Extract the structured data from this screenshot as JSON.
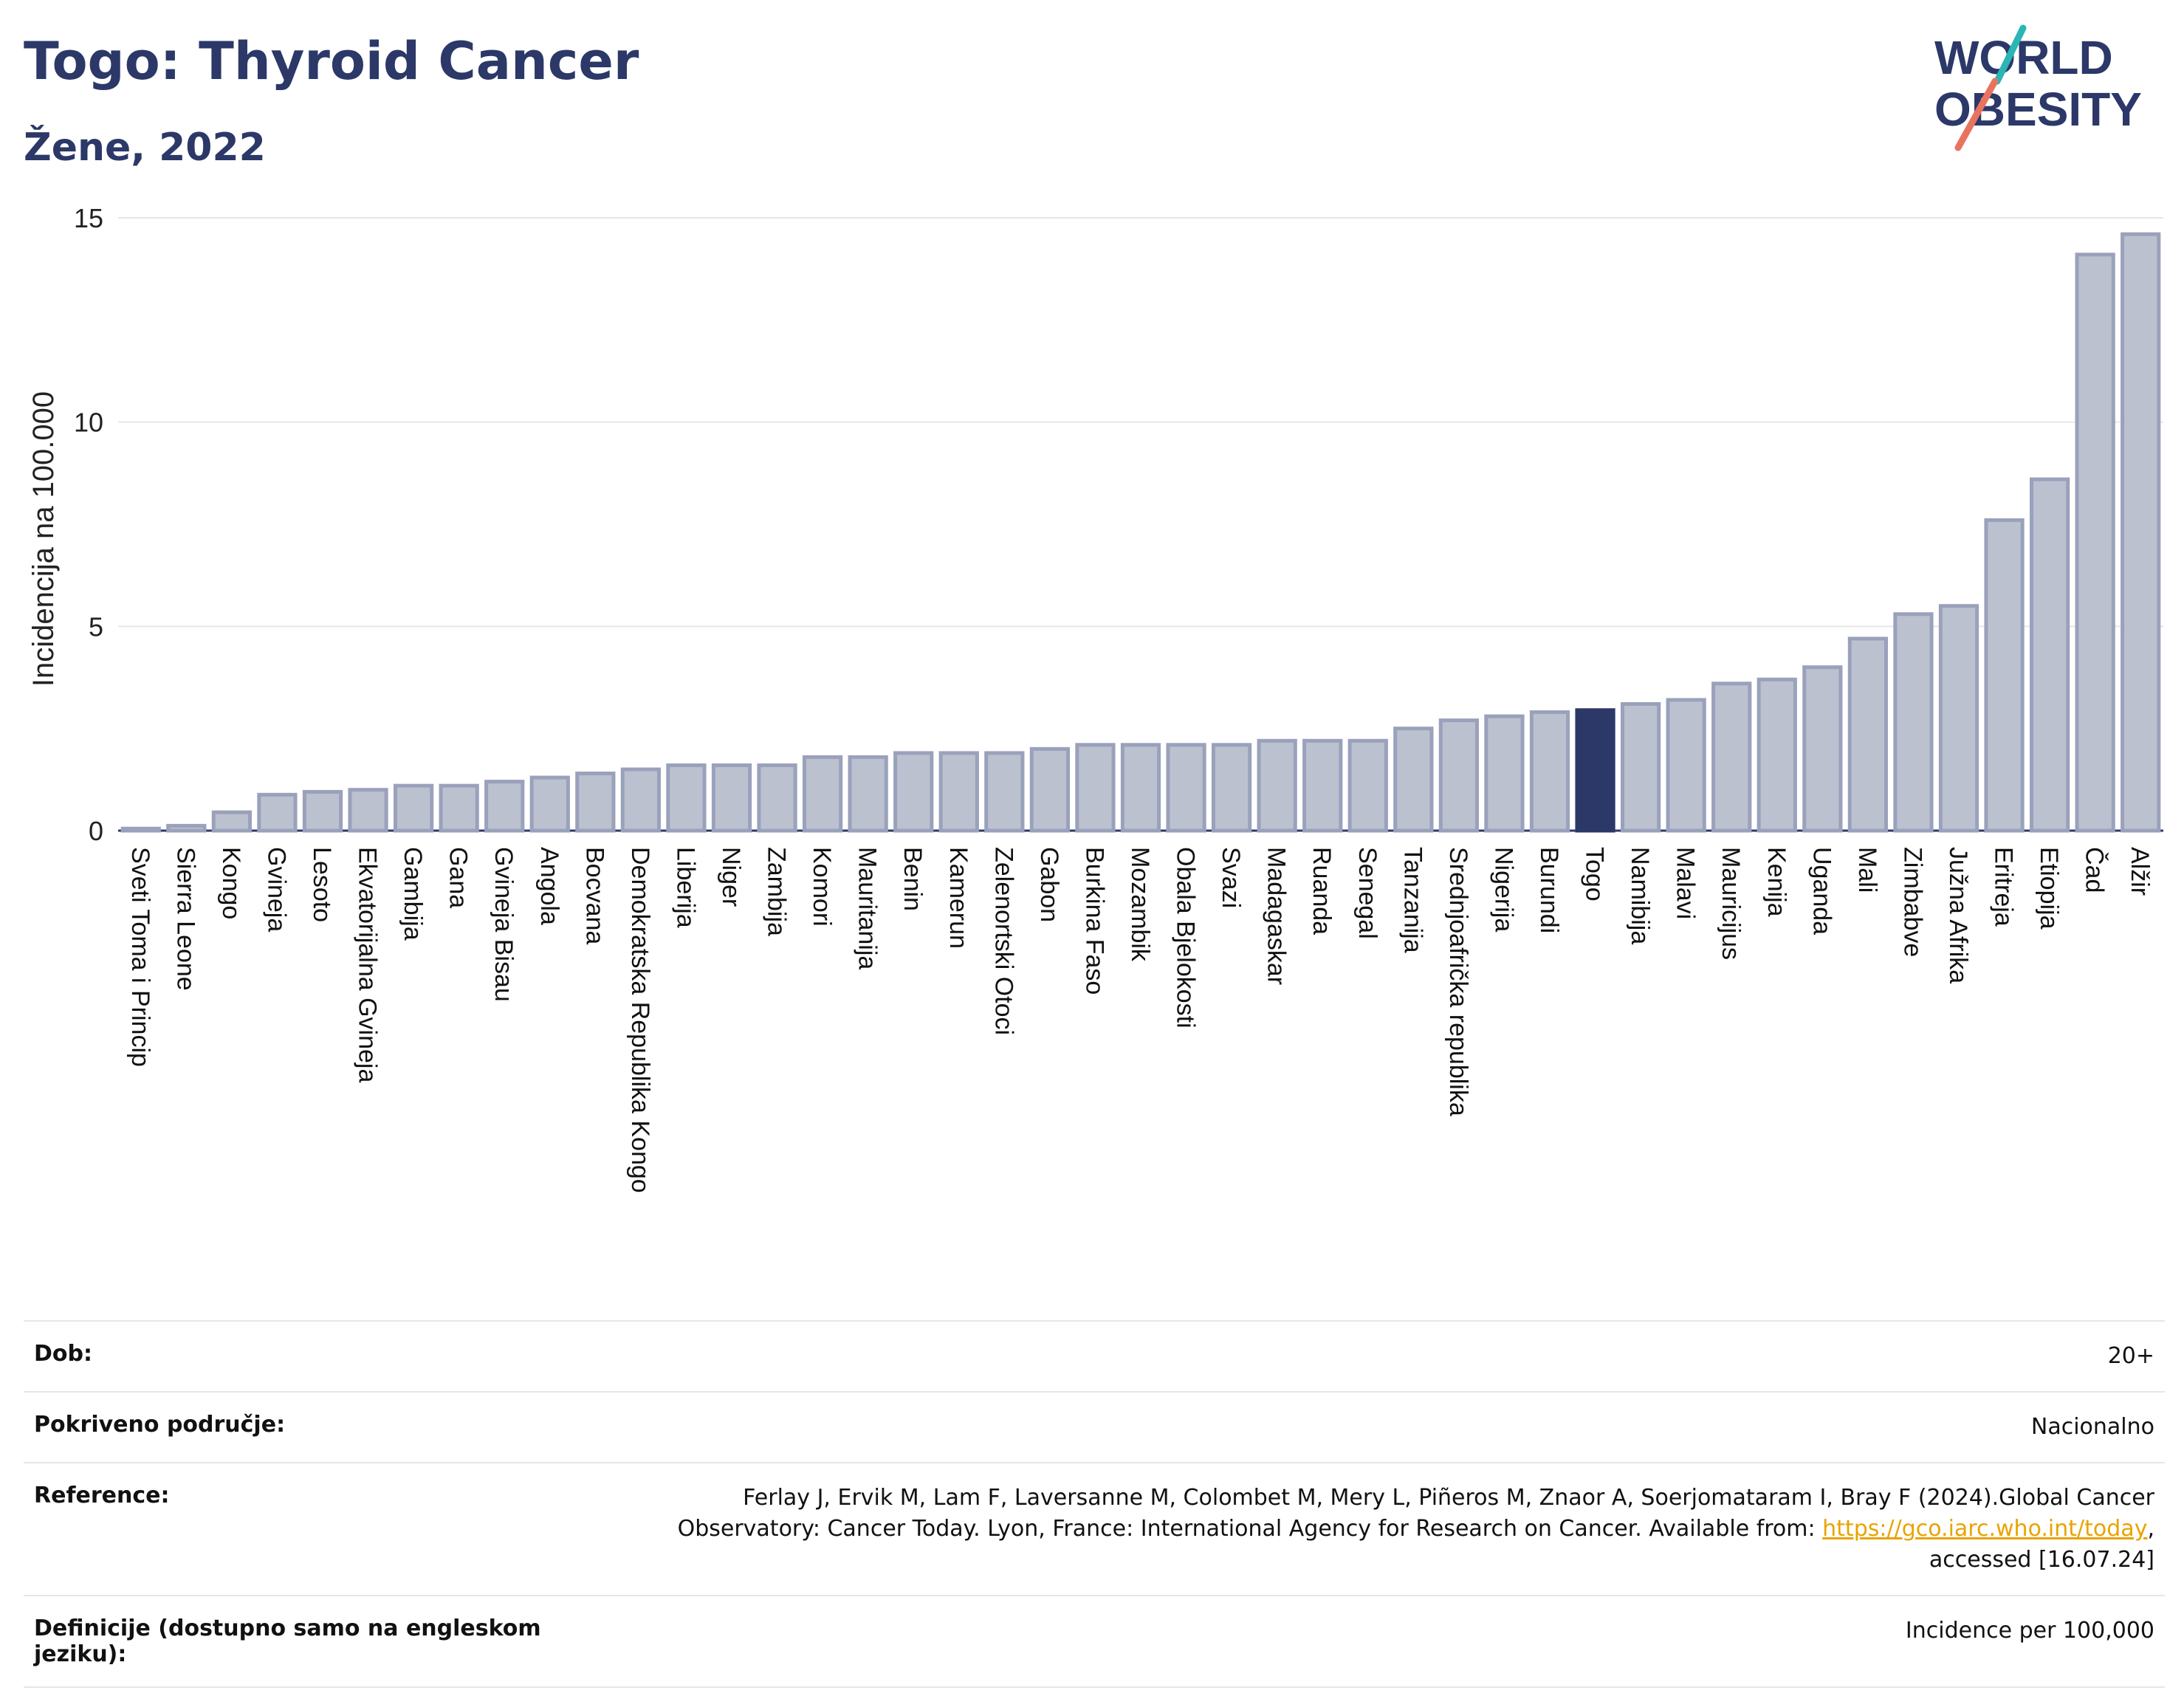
{
  "header": {
    "title": "Togo: Thyroid Cancer",
    "subtitle": "Žene, 2022"
  },
  "logo": {
    "line1": "WORLD",
    "line2": "OBESITY",
    "icon": "world-obesity-logo"
  },
  "colors": {
    "bar": "#bcc1d0",
    "bar_stroke": "#9aa1bb",
    "highlight": "#2b3868",
    "axis": "#2b3868",
    "grid": "#e6e6e6",
    "link": "#e8a400"
  },
  "chart_data": {
    "type": "bar",
    "ylabel": "Incidencija na 100.000",
    "ylim": [
      0,
      15
    ],
    "yticks": [
      0,
      5,
      10,
      15
    ],
    "highlight": "Togo",
    "categories": [
      "Sveti Toma i Princip",
      "Sierra Leone",
      "Kongo",
      "Gvineja",
      "Lesoto",
      "Ekvatorijalna Gvineja",
      "Gambija",
      "Gana",
      "Gvineja Bisau",
      "Angola",
      "Bocvana",
      "Demokratska Republika Kongo",
      "Liberija",
      "Niger",
      "Zambija",
      "Komori",
      "Mauritanija",
      "Benin",
      "Kamerun",
      "Zelenortski Otoci",
      "Gabon",
      "Burkina Faso",
      "Mozambik",
      "Obala Bjelokosti",
      "Svazi",
      "Madagaskar",
      "Ruanda",
      "Senegal",
      "Tanzanija",
      "Srednjoafrička republika",
      "Nigerija",
      "Burundi",
      "Togo",
      "Namibija",
      "Malavi",
      "Mauricijus",
      "Kenija",
      "Uganda",
      "Mali",
      "Zimbabve",
      "Južna Afrika",
      "Eritreja",
      "Etiopija",
      "Čad",
      "Alžir"
    ],
    "values": [
      0.05,
      0.12,
      0.45,
      0.88,
      0.95,
      1.0,
      1.1,
      1.1,
      1.2,
      1.3,
      1.4,
      1.5,
      1.6,
      1.6,
      1.6,
      1.8,
      1.8,
      1.9,
      1.9,
      1.9,
      2.0,
      2.1,
      2.1,
      2.1,
      2.1,
      2.2,
      2.2,
      2.2,
      2.5,
      2.7,
      2.8,
      2.9,
      2.95,
      3.1,
      3.2,
      3.6,
      3.7,
      4.0,
      4.7,
      5.3,
      5.5,
      7.6,
      8.6,
      14.1,
      14.6
    ]
  },
  "info": {
    "age_label": "Dob:",
    "age_value": "20+",
    "coverage_label": "Pokriveno područje:",
    "coverage_value": "Nacionalno",
    "reference_label": "Reference:",
    "reference_line1": "Ferlay J, Ervik M, Lam F, Laversanne M, Colombet M, Mery L, Piñeros M, Znaor A, Soerjomataram I, Bray F (2024).Global Cancer",
    "reference_line2": "Observatory: Cancer Today. Lyon, France: International Agency for Research on Cancer. Available from: ",
    "reference_link": "https://gco.iarc.who.int/today",
    "reference_line3": "accessed [16.07.24]",
    "definitions_label": "Definicije (dostupno samo na engleskom jeziku):",
    "definitions_value": "Incidence per 100,000"
  }
}
